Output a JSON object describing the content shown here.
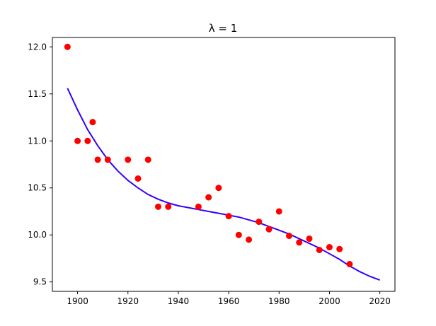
{
  "chart_data": {
    "type": "scatter",
    "title": "λ = 1",
    "xlabel": "",
    "ylabel": "",
    "xlim": [
      1890,
      2026
    ],
    "ylim": [
      9.4,
      12.1
    ],
    "xticks": [
      1900,
      1920,
      1940,
      1960,
      1980,
      2000,
      2020
    ],
    "yticks": [
      9.5,
      10.0,
      10.5,
      11.0,
      11.5,
      12.0
    ],
    "xtick_labels": [
      "1900",
      "1920",
      "1940",
      "1960",
      "1980",
      "2000",
      "2020"
    ],
    "ytick_labels": [
      "9.5",
      "10.0",
      "10.5",
      "11.0",
      "11.5",
      "12.0"
    ],
    "grid": false,
    "series": [
      {
        "kind": "scatter",
        "color": "#ff0000",
        "points": [
          [
            1896,
            12.0
          ],
          [
            1900,
            11.0
          ],
          [
            1904,
            11.0
          ],
          [
            1906,
            11.2
          ],
          [
            1908,
            10.8
          ],
          [
            1912,
            10.8
          ],
          [
            1920,
            10.8
          ],
          [
            1924,
            10.6
          ],
          [
            1928,
            10.8
          ],
          [
            1932,
            10.3
          ],
          [
            1936,
            10.3
          ],
          [
            1948,
            10.3
          ],
          [
            1952,
            10.4
          ],
          [
            1956,
            10.5
          ],
          [
            1960,
            10.2
          ],
          [
            1964,
            10.0
          ],
          [
            1968,
            9.95
          ],
          [
            1972,
            10.14
          ],
          [
            1976,
            10.06
          ],
          [
            1980,
            10.25
          ],
          [
            1984,
            9.99
          ],
          [
            1988,
            9.92
          ],
          [
            1992,
            9.96
          ],
          [
            1996,
            9.84
          ],
          [
            2000,
            9.87
          ],
          [
            2004,
            9.85
          ],
          [
            2008,
            9.69
          ]
        ]
      },
      {
        "kind": "line",
        "color": "#3300ff",
        "points": [
          [
            1896,
            11.56
          ],
          [
            1900,
            11.33
          ],
          [
            1904,
            11.12
          ],
          [
            1908,
            10.95
          ],
          [
            1912,
            10.8
          ],
          [
            1916,
            10.68
          ],
          [
            1920,
            10.58
          ],
          [
            1924,
            10.5
          ],
          [
            1928,
            10.43
          ],
          [
            1932,
            10.38
          ],
          [
            1936,
            10.34
          ],
          [
            1940,
            10.31
          ],
          [
            1944,
            10.29
          ],
          [
            1948,
            10.27
          ],
          [
            1952,
            10.25
          ],
          [
            1956,
            10.23
          ],
          [
            1960,
            10.21
          ],
          [
            1964,
            10.19
          ],
          [
            1968,
            10.16
          ],
          [
            1972,
            10.13
          ],
          [
            1976,
            10.09
          ],
          [
            1980,
            10.05
          ],
          [
            1984,
            10.01
          ],
          [
            1988,
            9.96
          ],
          [
            1992,
            9.91
          ],
          [
            1996,
            9.86
          ],
          [
            2000,
            9.8
          ],
          [
            2004,
            9.74
          ],
          [
            2008,
            9.67
          ],
          [
            2012,
            9.61
          ],
          [
            2016,
            9.56
          ],
          [
            2020,
            9.52
          ]
        ]
      }
    ]
  }
}
